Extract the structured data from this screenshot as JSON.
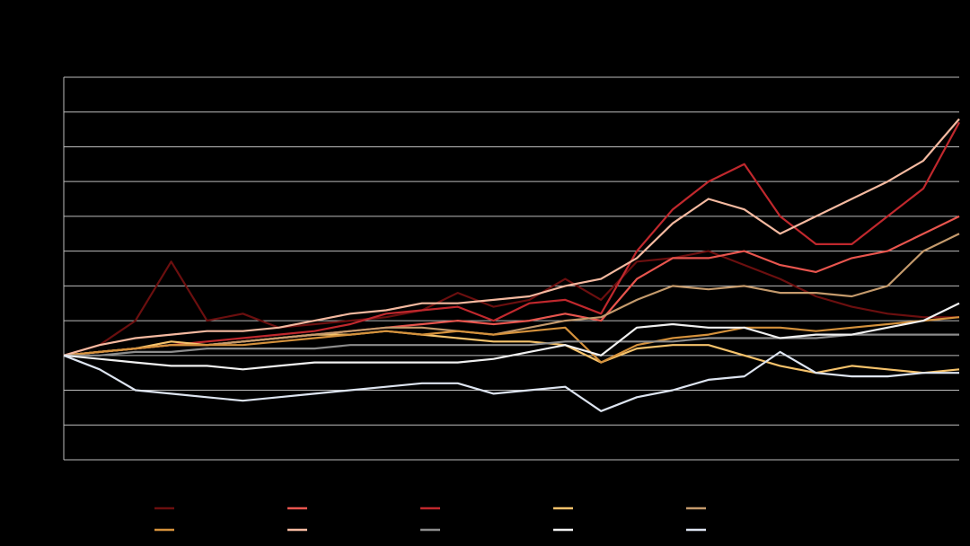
{
  "chart_data": {
    "type": "line",
    "x": [
      0,
      1,
      2,
      3,
      4,
      5,
      6,
      7,
      8,
      9,
      10,
      11,
      12,
      13,
      14,
      15,
      16,
      17,
      18,
      19,
      20,
      21,
      22,
      23,
      24,
      25
    ],
    "xlim": [
      0,
      25
    ],
    "ylim": [
      -30,
      80
    ],
    "yticks": [
      -30,
      -20,
      -10,
      0,
      10,
      20,
      30,
      40,
      50,
      60,
      70,
      80
    ],
    "grid": true,
    "legend": "bottom",
    "series": [
      {
        "color": "#6b0f0f",
        "values": [
          0,
          3,
          10,
          27,
          10,
          12,
          8,
          9,
          10,
          11,
          13,
          18,
          14,
          16,
          22,
          16,
          27,
          28,
          30,
          26,
          22,
          17,
          14,
          12,
          11,
          11
        ]
      },
      {
        "color": "#e8554e",
        "values": [
          0,
          1,
          2,
          3,
          3,
          4,
          5,
          6,
          7,
          8,
          9,
          10,
          9,
          10,
          12,
          10,
          22,
          28,
          28,
          30,
          26,
          24,
          28,
          30,
          35,
          40
        ]
      },
      {
        "color": "#c0282d",
        "values": [
          0,
          1,
          2,
          3,
          4,
          5,
          6,
          7,
          9,
          12,
          13,
          14,
          10,
          15,
          16,
          12,
          30,
          42,
          50,
          55,
          40,
          32,
          32,
          40,
          48,
          67
        ]
      },
      {
        "color": "#f5c26b",
        "values": [
          0,
          1,
          2,
          4,
          3,
          4,
          5,
          6,
          6,
          7,
          6,
          5,
          4,
          4,
          3,
          -2,
          2,
          3,
          3,
          0,
          -3,
          -5,
          -3,
          -4,
          -5,
          -4
        ]
      },
      {
        "color": "#c49a6c",
        "values": [
          0,
          1,
          2,
          3,
          3,
          4,
          5,
          6,
          7,
          8,
          8,
          7,
          6,
          8,
          10,
          11,
          16,
          20,
          19,
          20,
          18,
          18,
          17,
          20,
          30,
          35
        ]
      },
      {
        "color": "#d4913c",
        "values": [
          0,
          1,
          2,
          3,
          3,
          3,
          4,
          5,
          6,
          7,
          6,
          7,
          6,
          7,
          8,
          -2,
          3,
          5,
          6,
          8,
          8,
          7,
          8,
          9,
          10,
          11
        ]
      },
      {
        "color": "#f4b9a0",
        "values": [
          0,
          3,
          5,
          6,
          7,
          7,
          8,
          10,
          12,
          13,
          15,
          15,
          16,
          17,
          20,
          22,
          28,
          38,
          45,
          42,
          35,
          40,
          45,
          50,
          56,
          68
        ]
      },
      {
        "color": "#8c8c8c",
        "values": [
          0,
          0,
          1,
          1,
          2,
          2,
          2,
          2,
          3,
          3,
          3,
          3,
          3,
          3,
          4,
          4,
          4,
          4,
          5,
          5,
          5,
          5,
          6,
          6,
          6,
          6
        ]
      },
      {
        "color": "#f0f0f0",
        "values": [
          0,
          -1,
          -2,
          -3,
          -3,
          -4,
          -3,
          -2,
          -2,
          -2,
          -2,
          -2,
          -1,
          1,
          3,
          0,
          8,
          9,
          8,
          8,
          5,
          6,
          6,
          8,
          10,
          15
        ]
      },
      {
        "color": "#dde4f0",
        "values": [
          0,
          -4,
          -10,
          -11,
          -12,
          -13,
          -12,
          -11,
          -10,
          -9,
          -8,
          -8,
          -11,
          -10,
          -9,
          -16,
          -12,
          -10,
          -7,
          -6,
          1,
          -5,
          -6,
          -6,
          -5,
          -5
        ]
      }
    ]
  }
}
